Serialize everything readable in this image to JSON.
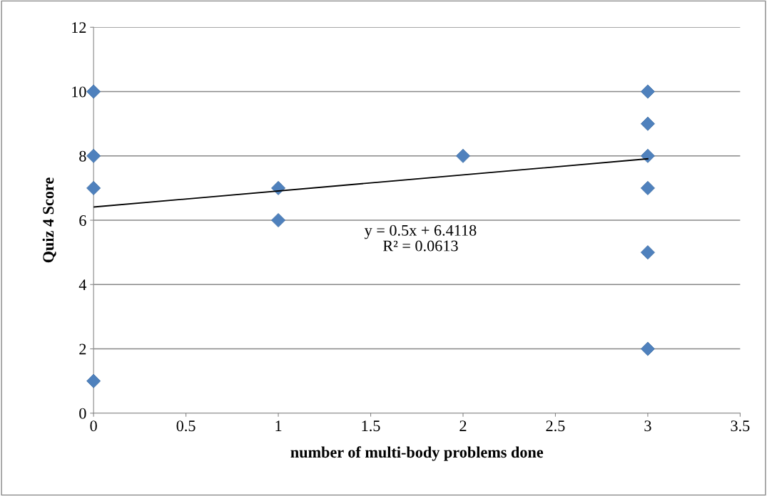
{
  "chart_data": {
    "type": "scatter",
    "xlabel": "number of multi-body problems done",
    "ylabel": "Quiz 4 Score",
    "series": [
      {
        "color": "#4f81bd",
        "marker": "diamond",
        "x": [
          0,
          0,
          0,
          0,
          1,
          1,
          2,
          3,
          3,
          3,
          3,
          3,
          3
        ],
        "values": [
          10,
          8,
          7,
          1,
          7,
          6,
          8,
          10,
          9,
          8,
          7,
          5,
          2
        ]
      },
      {
        "type": "line",
        "color": "#000000",
        "marker": "none",
        "line_style": "solid",
        "x": [
          0,
          3
        ],
        "values": [
          6.41,
          7.91
        ]
      }
    ],
    "annotations": [
      "y = 0.5x + 6.4118\nR² = 0.0613"
    ],
    "xlim": [
      0,
      3.5
    ],
    "xticks": [
      0,
      0.5,
      1,
      1.5,
      2,
      2.5,
      3,
      3.5
    ],
    "ylim": [
      0,
      12
    ],
    "yticks": [
      0,
      2,
      4,
      6,
      8,
      10,
      12
    ],
    "grid": "y"
  }
}
